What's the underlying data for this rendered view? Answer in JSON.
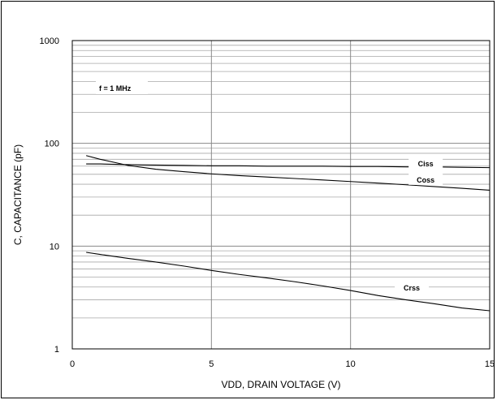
{
  "chart_data": {
    "type": "line",
    "xlabel": "VDD, DRAIN VOLTAGE (V)",
    "ylabel": "C, CAPACITANCE (pF)",
    "xlim": [
      0,
      15
    ],
    "ylim": [
      1,
      1000
    ],
    "yscale": "log",
    "grid": true,
    "x_ticks": [
      0,
      5,
      10,
      15
    ],
    "x_tick_labels": [
      "0",
      "5",
      "10",
      "15"
    ],
    "y_ticks": [
      1,
      10,
      100,
      1000
    ],
    "y_tick_labels": [
      "1",
      "10",
      "100",
      "1000"
    ],
    "annotation": "f = 1 MHz",
    "series": [
      {
        "name": "Ciss",
        "x": [
          0.5,
          1,
          2,
          3,
          4,
          5,
          6,
          7,
          8,
          9,
          10,
          11,
          12,
          13,
          14,
          15
        ],
        "y": [
          63,
          63,
          62,
          61.5,
          61,
          60.5,
          60.5,
          60,
          60,
          60,
          59.5,
          59.5,
          59,
          59,
          58.5,
          58
        ],
        "label_at": [
          12.7,
          63
        ]
      },
      {
        "name": "Coss",
        "x": [
          0.5,
          1,
          2,
          3,
          4,
          5,
          6,
          7,
          8,
          9,
          10,
          11,
          12,
          13,
          14,
          15
        ],
        "y": [
          76,
          70,
          61,
          56,
          53,
          50.5,
          48.5,
          47,
          45.5,
          44,
          42.5,
          41,
          39.5,
          38,
          36.5,
          35
        ],
        "label_at": [
          12.7,
          44
        ]
      },
      {
        "name": "Crss",
        "x": [
          0.5,
          1,
          2,
          3,
          4,
          5,
          6,
          7,
          8,
          9,
          10,
          11,
          12,
          13,
          14,
          15
        ],
        "y": [
          8.7,
          8.3,
          7.6,
          7.0,
          6.4,
          5.8,
          5.3,
          4.9,
          4.5,
          4.1,
          3.7,
          3.3,
          3.0,
          2.75,
          2.5,
          2.35
        ],
        "label_at": [
          12.2,
          3.9
        ]
      }
    ]
  }
}
